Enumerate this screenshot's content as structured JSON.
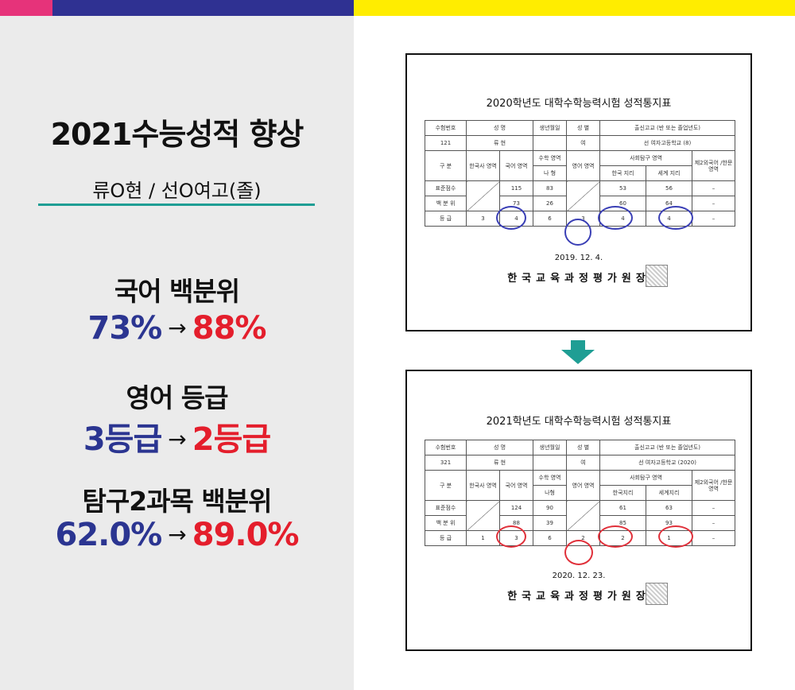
{
  "headline": {
    "title": "2021수능성적 향상",
    "subtitle": "류O현 / 선O여고(졸)"
  },
  "stats": [
    {
      "label": "국어 백분위",
      "before": "73%",
      "after": "88%"
    },
    {
      "label": "영어 등급",
      "before": "3등급",
      "after": "2등급"
    },
    {
      "label": "탐구2과목 백분위",
      "before": "62.0%",
      "after": "89.0%"
    }
  ],
  "arrow_symbol": "→",
  "colors": {
    "blue": "#2b3591",
    "red": "#e41e2c",
    "teal": "#1f9e94",
    "pink": "#e6337a",
    "navy": "#2f3192",
    "yellow": "#ffed00"
  },
  "report_2020": {
    "title": "2020학년도 대학수학능력시험 성적통지표",
    "h": [
      "수험번호",
      "성 명",
      "생년월일",
      "성 별",
      "출신고교 (반 또는 졸업년도)"
    ],
    "info": [
      "121",
      "류 현",
      "",
      "여",
      "선 여자고등학교 (8)"
    ],
    "group_label": "구 분",
    "subject_korhist": "한국사 영역",
    "subject_kor": "국어 영역",
    "subject_math": "수학 영역",
    "subject_math_type": "나 형",
    "subject_eng": "영어 영역",
    "subject_social": "사회탐구 영역",
    "subject_social_1": "한국 지리",
    "subject_social_2": "세계 지리",
    "subject_foreign": "제2외국어 /한문 영역",
    "row_std": "표준점수",
    "row_pct": "백 분 위",
    "row_grade": "등 급",
    "std": [
      "115",
      "83",
      "53",
      "56"
    ],
    "pct": [
      "73",
      "26",
      "60",
      "64"
    ],
    "grade": [
      "3",
      "4",
      "6",
      "3",
      "4",
      "4"
    ],
    "dash": "–",
    "date": "2019. 12. 4.",
    "issuer": "한국교육과정평가원장"
  },
  "report_2021": {
    "title": "2021학년도 대학수학능력시험 성적통지표",
    "h": [
      "수험번호",
      "성 명",
      "생년월일",
      "성 별",
      "출신고교 (반 또는 졸업년도)"
    ],
    "info": [
      "321",
      "류 현",
      "",
      "여",
      "선 여자고등학교 (2020)"
    ],
    "group_label": "구 분",
    "subject_korhist": "한국사 영역",
    "subject_kor": "국어 영역",
    "subject_math": "수학 영역",
    "subject_math_type": "나형",
    "subject_eng": "영어 영역",
    "subject_social": "사회탐구 영역",
    "subject_social_1": "한국지리",
    "subject_social_2": "세계지리",
    "subject_foreign": "제2외국어 /한문 영역",
    "row_std": "표준점수",
    "row_pct": "백 분 위",
    "row_grade": "등 급",
    "std": [
      "124",
      "90",
      "61",
      "63"
    ],
    "pct": [
      "88",
      "39",
      "85",
      "93"
    ],
    "grade": [
      "1",
      "3",
      "6",
      "2",
      "2",
      "1"
    ],
    "dash": "–",
    "date": "2020. 12. 23.",
    "issuer": "한국교육과정평가원장"
  }
}
